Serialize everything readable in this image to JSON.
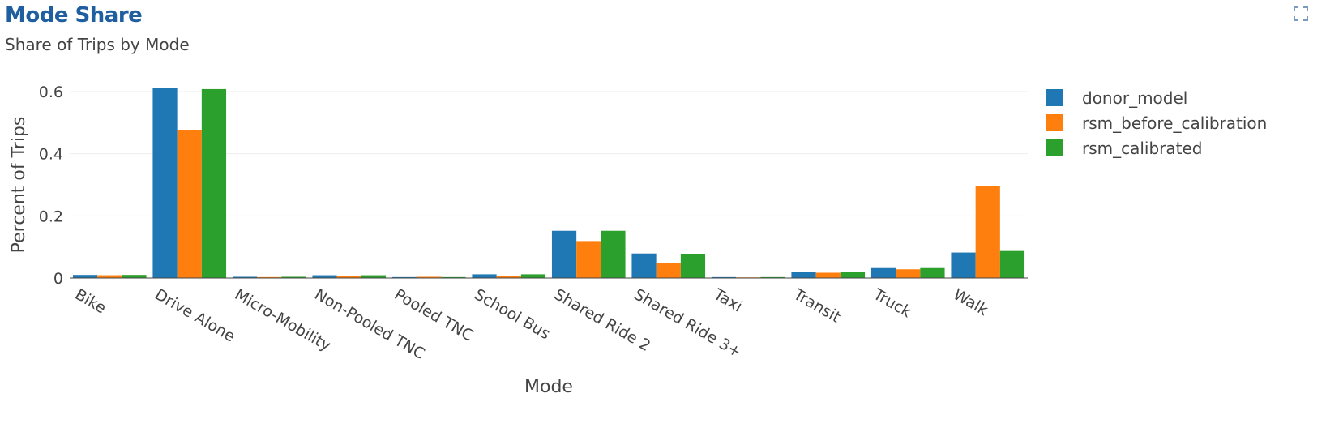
{
  "header": {
    "title": "Mode Share",
    "subtitle": "Share of Trips by Mode",
    "expand_icon": "expand-icon"
  },
  "chart_data": {
    "type": "bar",
    "title": "Mode Share",
    "subtitle": "Share of Trips by Mode",
    "xlabel": "Mode",
    "ylabel": "Percent of Trips",
    "ylim": [
      0,
      0.6
    ],
    "yticks": [
      0,
      0.2,
      0.4,
      0.6
    ],
    "ytick_labels": [
      "0",
      "0.2",
      "0.4",
      "0.6"
    ],
    "grid": true,
    "legend_position": "top-right",
    "categories": [
      "Bike",
      "Drive Alone",
      "Micro-Mobility",
      "Non-Pooled TNC",
      "Pooled TNC",
      "School Bus",
      "Shared Ride 2",
      "Shared Ride 3+",
      "Taxi",
      "Transit",
      "Truck",
      "Walk"
    ],
    "series": [
      {
        "name": "donor_model",
        "color": "#1f77b4",
        "values": [
          0.01,
          0.612,
          0.004,
          0.009,
          0.003,
          0.012,
          0.152,
          0.079,
          0.003,
          0.02,
          0.032,
          0.082
        ]
      },
      {
        "name": "rsm_before_calibration",
        "color": "#ff7f0e",
        "values": [
          0.009,
          0.475,
          0.003,
          0.006,
          0.004,
          0.006,
          0.119,
          0.047,
          0.002,
          0.017,
          0.028,
          0.296
        ]
      },
      {
        "name": "rsm_calibrated",
        "color": "#2ca02c",
        "values": [
          0.01,
          0.608,
          0.004,
          0.009,
          0.003,
          0.012,
          0.152,
          0.077,
          0.003,
          0.02,
          0.032,
          0.087
        ]
      }
    ]
  }
}
